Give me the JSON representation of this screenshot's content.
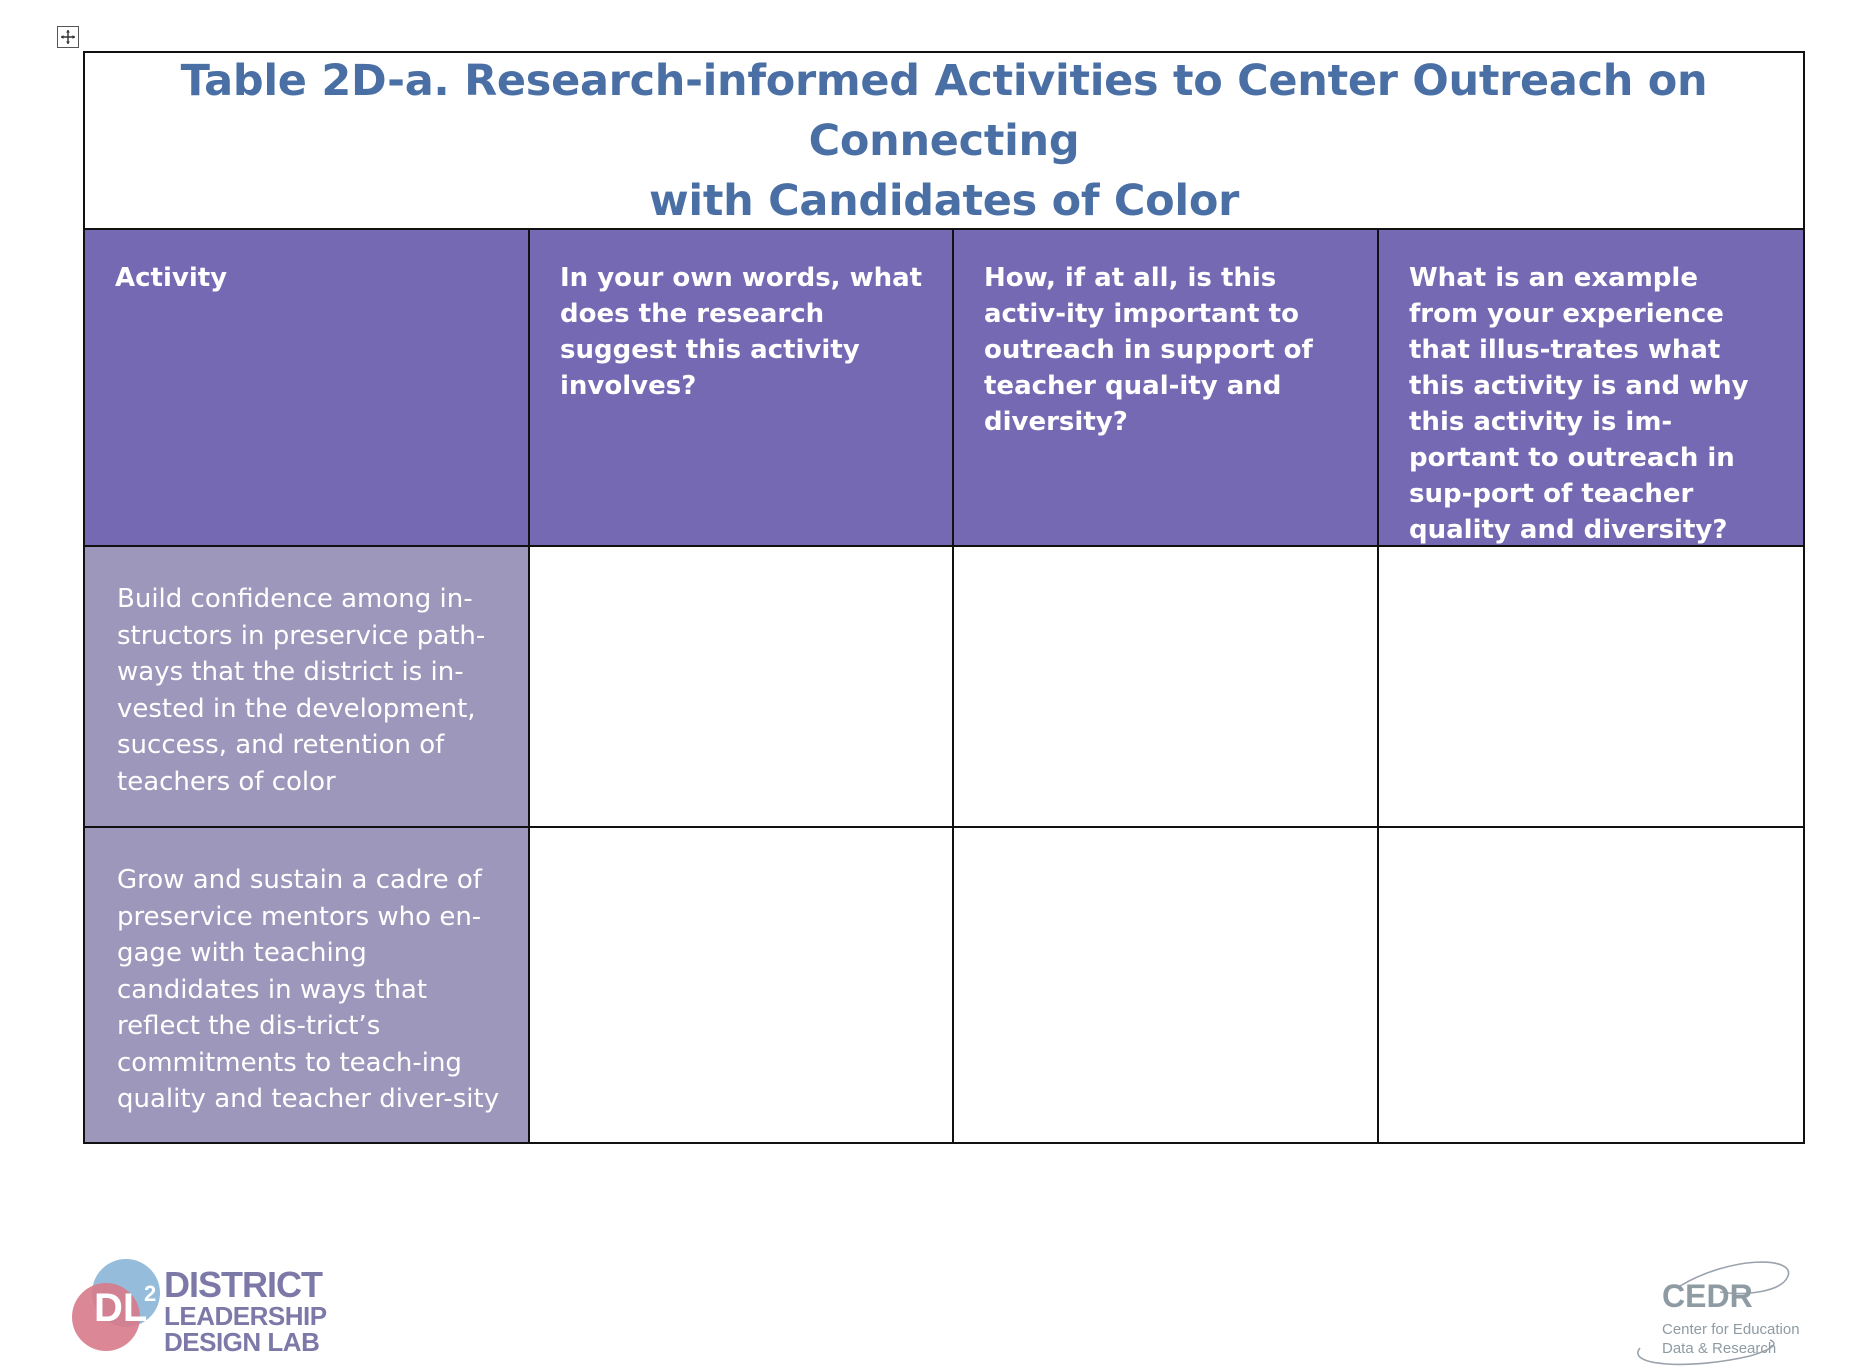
{
  "table": {
    "title_line1": "Table 2D-a. Research-informed Activities to Center Outreach on Connecting",
    "title_line2": "with Candidates of Color",
    "headers": [
      "Activity",
      "In your own words, what does the research suggest this activity involves?",
      "How, if at all, is this activ-ity important to outreach in support of teacher qual-ity and diversity?",
      "What is an example from your experience that illus-trates what this activity is and why this activity is im-portant to outreach in sup-port of teacher quality and diversity?"
    ],
    "rows": [
      {
        "activity": "Build confidence among in-structors in preservice path-ways that the district is in-vested in the development, success, and retention of teachers of color"
      },
      {
        "activity": "Grow and sustain a cadre of preservice mentors who en-gage with teaching candidates in ways that reflect the dis-trict’s commitments to teach-ing quality and teacher diver-sity"
      }
    ],
    "colors": {
      "title": "#4a6fa5",
      "header_bg": "#7669b3",
      "activity_bg": "#9d97bb"
    }
  },
  "footer": {
    "left_logo": {
      "mark": "DL",
      "superscript": "2",
      "line1": "DISTRICT",
      "line2": "LEADERSHIP",
      "line3": "DESIGN LAB"
    },
    "right_logo": {
      "name": "CEDR",
      "line1": "Center for Education",
      "line2": "Data & Research"
    }
  }
}
